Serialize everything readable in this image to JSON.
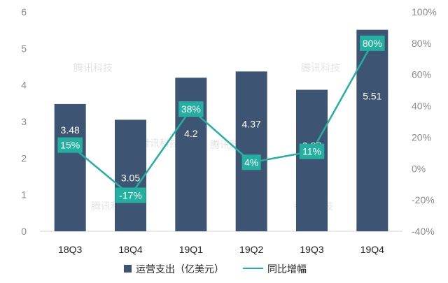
{
  "chart_data": {
    "type": "bar",
    "categories": [
      "18Q3",
      "18Q4",
      "19Q1",
      "19Q2",
      "19Q3",
      "19Q4"
    ],
    "series": [
      {
        "name": "运营支出（亿美元）",
        "type": "bar",
        "axis": "left",
        "color": "#3d5572",
        "values": [
          3.48,
          3.05,
          4.2,
          4.37,
          3.87,
          5.51
        ],
        "labels": [
          "3.48",
          "3.05",
          "4.2",
          "4.37",
          "3.87",
          "5.51"
        ]
      },
      {
        "name": "同比增幅",
        "type": "line",
        "axis": "right",
        "color": "#24b0a0",
        "values": [
          15,
          -17,
          38,
          4,
          11,
          80
        ],
        "labels": [
          "15%",
          "-17%",
          "38%",
          "4%",
          "11%",
          "80%"
        ]
      }
    ],
    "left_axis": {
      "min": 0,
      "max": 6,
      "ticks": [
        "0",
        "1",
        "2",
        "3",
        "4",
        "5",
        "6"
      ]
    },
    "right_axis": {
      "min": -40,
      "max": 100,
      "ticks": [
        "-40%",
        "-20%",
        "0%",
        "20%",
        "40%",
        "60%",
        "80%",
        "100%"
      ]
    },
    "legend_position": "bottom",
    "grid": false,
    "watermark": "腾讯科技"
  }
}
